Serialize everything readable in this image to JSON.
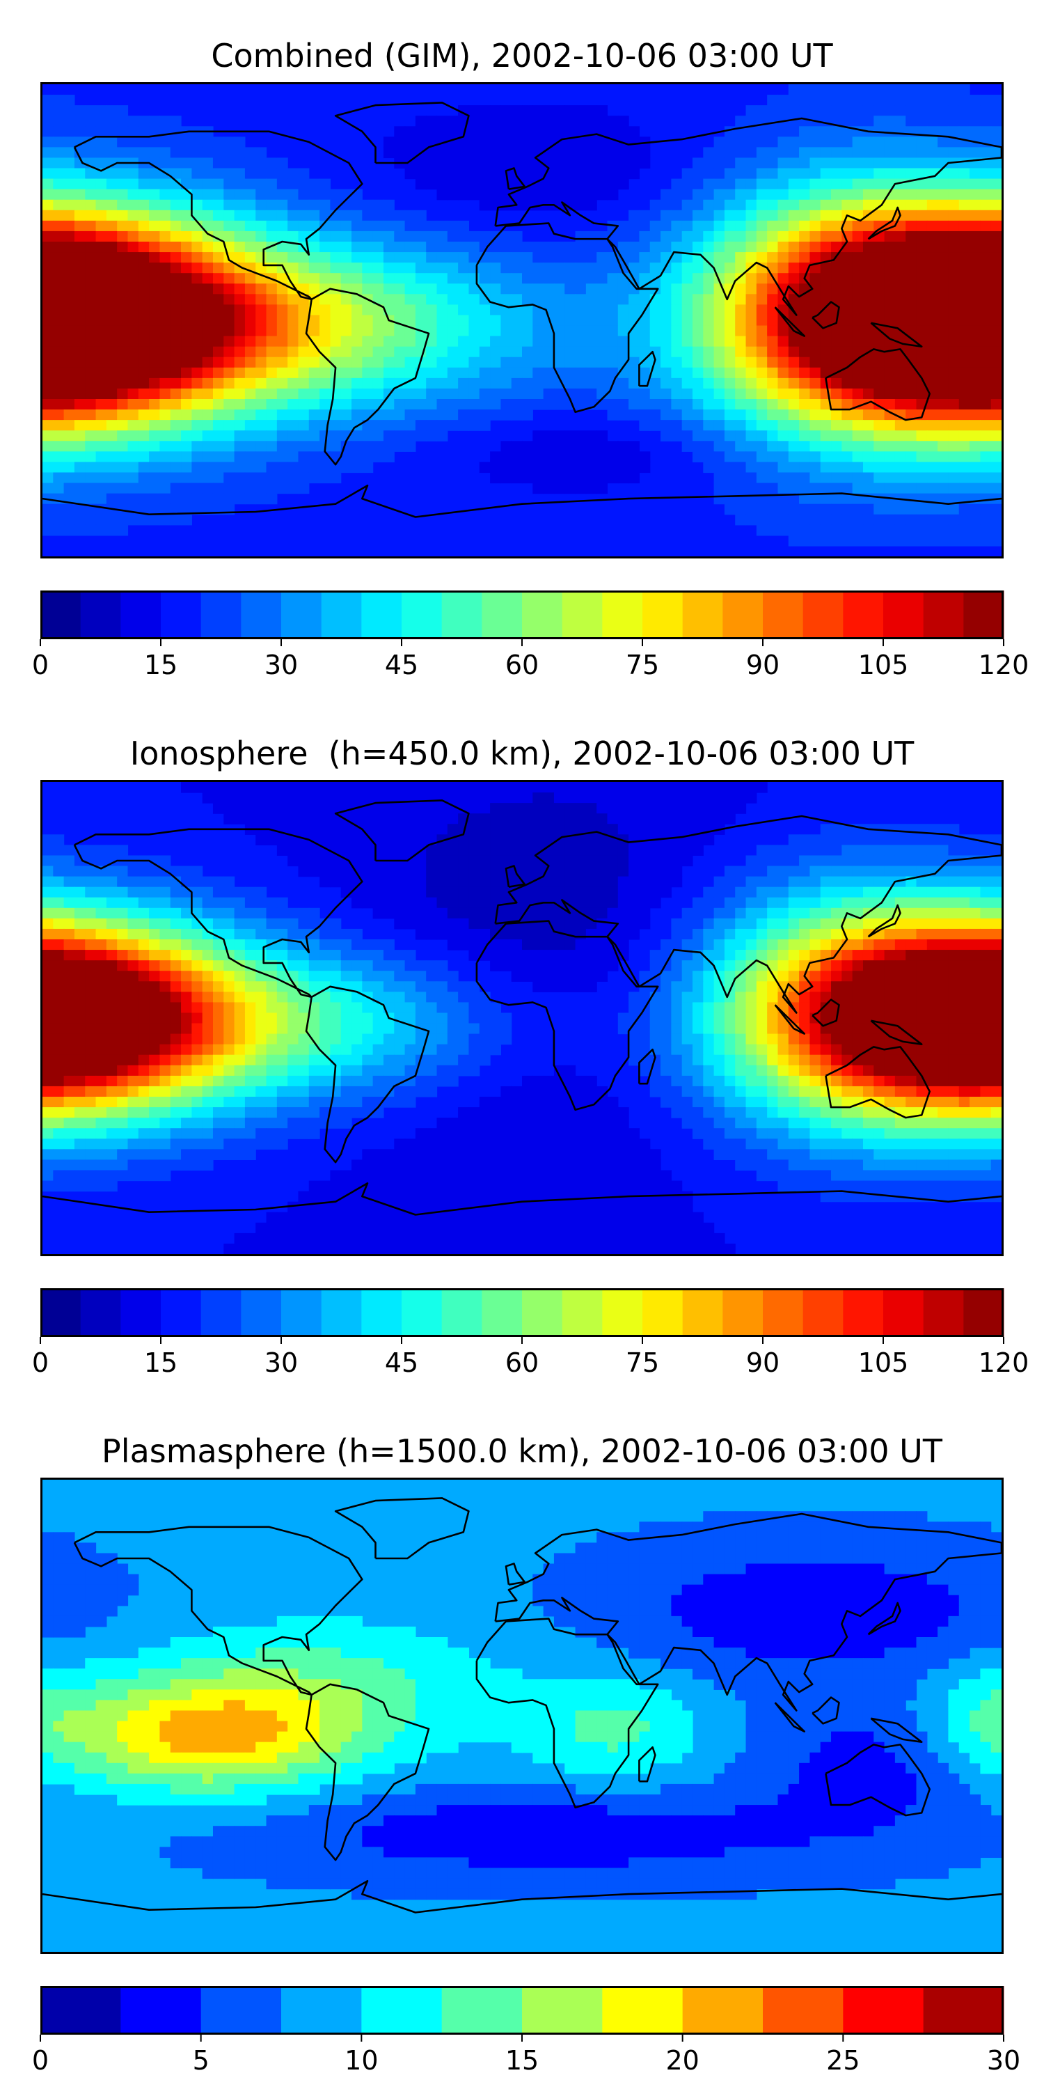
{
  "panels": [
    {
      "title": "Combined (GIM), 2002-10-06 03:00 UT",
      "colorbar": {
        "min": 0,
        "max": 120,
        "levels": 24,
        "tick_values": [
          0,
          15,
          30,
          45,
          60,
          75,
          90,
          105,
          120
        ],
        "tick_labels": [
          "0",
          "15",
          "30",
          "45",
          "60",
          "75",
          "90",
          "105",
          "120"
        ]
      },
      "fields": [
        {
          "lon": 165,
          "lat": 0,
          "value": 90,
          "spread_lon": 55,
          "spread_lat": 28
        },
        {
          "lon": -170,
          "lat": 0,
          "value": 90,
          "spread_lon": 50,
          "spread_lat": 26
        },
        {
          "lon": 120,
          "lat": 5,
          "value": 40,
          "spread_lon": 40,
          "spread_lat": 35
        },
        {
          "lon": -70,
          "lat": -2,
          "value": 38,
          "spread_lon": 55,
          "spread_lat": 22
        },
        {
          "lon": 30,
          "lat": -50,
          "value": -8,
          "spread_lon": 45,
          "spread_lat": 12
        },
        {
          "lon": 10,
          "lat": 55,
          "value": -8,
          "spread_lon": 55,
          "spread_lat": 20
        }
      ],
      "base_value": 18
    },
    {
      "title": "Ionosphere  (h=450.0 km), 2002-10-06 03:00 UT",
      "colorbar": {
        "min": 0,
        "max": 120,
        "levels": 24,
        "tick_values": [
          0,
          15,
          30,
          45,
          60,
          75,
          90,
          105,
          120
        ],
        "tick_labels": [
          "0",
          "15",
          "30",
          "45",
          "60",
          "75",
          "90",
          "105",
          "120"
        ]
      },
      "fields": [
        {
          "lon": 165,
          "lat": 0,
          "value": 78,
          "spread_lon": 55,
          "spread_lat": 26
        },
        {
          "lon": -175,
          "lat": 0,
          "value": 75,
          "spread_lon": 45,
          "spread_lat": 24
        },
        {
          "lon": 120,
          "lat": 5,
          "value": 32,
          "spread_lon": 40,
          "spread_lat": 35
        },
        {
          "lon": -75,
          "lat": -2,
          "value": 30,
          "spread_lon": 55,
          "spread_lat": 20
        },
        {
          "lon": 10,
          "lat": 20,
          "value": -10,
          "spread_lon": 55,
          "spread_lat": 55
        }
      ],
      "base_value": 15
    },
    {
      "title": "Plasmasphere (h=1500.0 km), 2002-10-06 03:00 UT",
      "colorbar": {
        "min": 0,
        "max": 30,
        "levels": 12,
        "tick_values": [
          0,
          5,
          10,
          15,
          20,
          25,
          30
        ],
        "tick_labels": [
          "0",
          "5",
          "10",
          "15",
          "20",
          "25",
          "30"
        ]
      },
      "fields": [
        {
          "lon": -118,
          "lat": -8,
          "value": 12,
          "spread_lon": 38,
          "spread_lat": 15
        },
        {
          "lon": -75,
          "lat": 12,
          "value": 5,
          "spread_lon": 50,
          "spread_lat": 18
        },
        {
          "lon": 35,
          "lat": -5,
          "value": 5,
          "spread_lon": 25,
          "spread_lat": 15
        },
        {
          "lon": 175,
          "lat": 0,
          "value": 4,
          "spread_lon": 18,
          "spread_lat": 15
        },
        {
          "lon": 110,
          "lat": 40,
          "value": -5,
          "spread_lon": 55,
          "spread_lat": 18
        },
        {
          "lon": 10,
          "lat": -45,
          "value": -5,
          "spread_lon": 75,
          "spread_lat": 12
        },
        {
          "lon": 130,
          "lat": -20,
          "value": -4,
          "spread_lon": 30,
          "spread_lat": 18
        }
      ],
      "base_value": 8
    }
  ],
  "colormap": "jet"
}
